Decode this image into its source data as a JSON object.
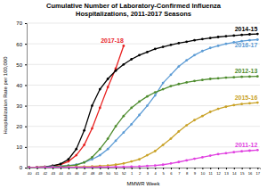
{
  "chart_data": {
    "type": "line",
    "title": "Cumulative Number of Laboratory-Confirmed Influenza Hospitalizations, 2011-2017 Seasons",
    "x_label": "MMWR Week",
    "y_label": "Hospitalization Rate per 100,000",
    "categories": [
      "40",
      "41",
      "42",
      "43",
      "44",
      "45",
      "46",
      "47",
      "48",
      "49",
      "50",
      "51",
      "52",
      "1",
      "2",
      "3",
      "4",
      "5",
      "6",
      "7",
      "8",
      "9",
      "10",
      "11",
      "12",
      "13",
      "14",
      "15",
      "16",
      "17"
    ],
    "ylim": [
      0,
      70
    ],
    "yticks": [
      0,
      10,
      20,
      30,
      40,
      50,
      60,
      70
    ],
    "grid": true,
    "marker": "circle",
    "series": [
      {
        "name": "2017-18",
        "color": "#e8201f",
        "values": [
          0.1,
          0.2,
          0.4,
          0.8,
          1.5,
          3,
          6,
          11,
          19,
          29,
          39,
          48,
          59,
          null,
          null,
          null,
          null,
          null,
          null,
          null,
          null,
          null,
          null,
          null,
          null,
          null,
          null,
          null,
          null,
          null
        ]
      },
      {
        "name": "2014-15",
        "color": "#000000",
        "values": [
          0.1,
          0.2,
          0.4,
          0.9,
          1.8,
          4,
          9,
          18,
          30,
          38,
          43,
          47,
          50,
          52.5,
          54.5,
          56,
          57.5,
          58.5,
          59.5,
          60.3,
          61,
          61.7,
          62.3,
          62.8,
          63.3,
          63.7,
          64,
          64.3,
          64.6,
          64.8
        ]
      },
      {
        "name": "2016-17",
        "color": "#5b9bd5",
        "values": [
          0.1,
          0.2,
          0.3,
          0.5,
          0.7,
          1,
          1.5,
          2.5,
          4,
          6,
          9,
          13,
          17,
          21,
          25.5,
          30,
          35,
          41,
          45,
          49,
          52,
          54.5,
          56.5,
          58,
          59,
          60,
          60.7,
          61.3,
          61.7,
          62
        ]
      },
      {
        "name": "2012-13",
        "color": "#4e8c2e",
        "values": [
          0.1,
          0.2,
          0.3,
          0.4,
          0.6,
          0.9,
          1.2,
          2.5,
          5,
          9,
          14,
          20,
          25,
          29,
          32,
          34.5,
          36.5,
          38,
          39.5,
          40.5,
          41.3,
          42,
          42.5,
          43,
          43.3,
          43.6,
          43.8,
          44,
          44.1,
          44.2
        ]
      },
      {
        "name": "2015-16",
        "color": "#c9a227",
        "values": [
          0,
          0.1,
          0.1,
          0.2,
          0.2,
          0.3,
          0.4,
          0.5,
          0.6,
          0.8,
          1,
          1.4,
          2,
          3,
          4,
          6,
          8,
          11,
          14,
          17.5,
          20.5,
          23,
          25,
          27,
          28.5,
          29.5,
          30.3,
          30.8,
          31.2,
          31.5
        ]
      },
      {
        "name": "2011-12",
        "color": "#e040e0",
        "values": [
          0,
          0,
          0.1,
          0.1,
          0.1,
          0.1,
          0.2,
          0.2,
          0.2,
          0.3,
          0.3,
          0.4,
          0.4,
          0.5,
          0.6,
          0.8,
          1,
          1.4,
          2,
          2.7,
          3.5,
          4.3,
          5,
          5.8,
          6.5,
          7,
          7.5,
          7.9,
          8.2,
          8.5
        ]
      }
    ]
  }
}
